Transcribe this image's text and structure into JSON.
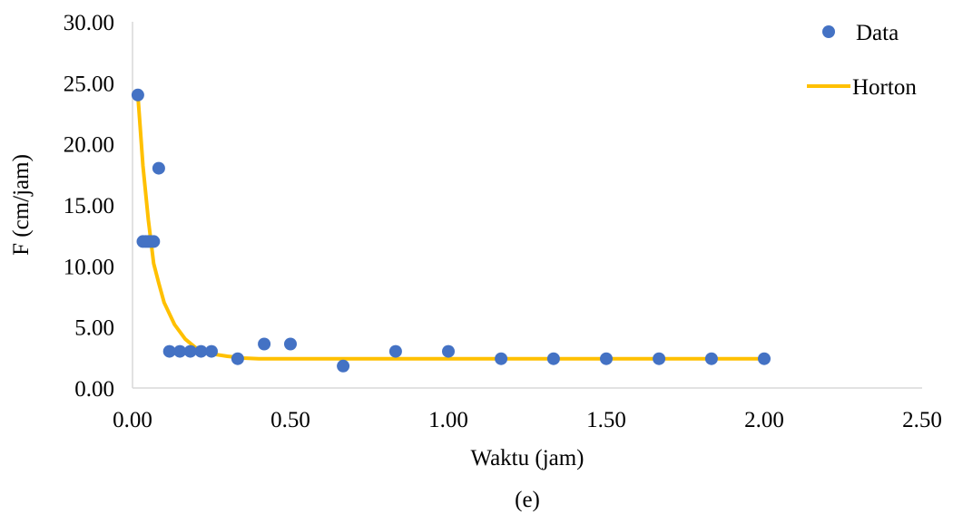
{
  "chart_data": {
    "type": "scatter",
    "xlabel": "Waktu (jam)",
    "ylabel": "F (cm/jam)",
    "caption": "(e)",
    "xlim": [
      0,
      2.5
    ],
    "ylim": [
      0,
      30
    ],
    "xticks": [
      "0.00",
      "0.50",
      "1.00",
      "1.50",
      "2.00",
      "2.50"
    ],
    "yticks": [
      "0.00",
      "5.00",
      "10.00",
      "15.00",
      "20.00",
      "25.00",
      "30.00"
    ],
    "grid": false,
    "legend_position": "top-right",
    "series": [
      {
        "name": "Data",
        "kind": "scatter",
        "color": "#4472C4",
        "points": [
          [
            0.017,
            24.0
          ],
          [
            0.033,
            12.0
          ],
          [
            0.042,
            12.0
          ],
          [
            0.05,
            12.0
          ],
          [
            0.058,
            12.0
          ],
          [
            0.067,
            12.0
          ],
          [
            0.083,
            18.0
          ],
          [
            0.117,
            3.0
          ],
          [
            0.15,
            3.0
          ],
          [
            0.183,
            3.0
          ],
          [
            0.217,
            3.0
          ],
          [
            0.25,
            3.0
          ],
          [
            0.333,
            2.4
          ],
          [
            0.417,
            3.6
          ],
          [
            0.5,
            3.6
          ],
          [
            0.667,
            1.8
          ],
          [
            0.833,
            3.0
          ],
          [
            1.0,
            3.0
          ],
          [
            1.167,
            2.4
          ],
          [
            1.333,
            2.4
          ],
          [
            1.5,
            2.4
          ],
          [
            1.667,
            2.4
          ],
          [
            1.833,
            2.4
          ],
          [
            2.0,
            2.4
          ]
        ]
      },
      {
        "name": "Horton",
        "kind": "line",
        "color": "#FFC000",
        "points": [
          [
            0.017,
            24.0
          ],
          [
            0.033,
            18.2
          ],
          [
            0.05,
            13.8
          ],
          [
            0.067,
            10.2
          ],
          [
            0.083,
            8.6
          ],
          [
            0.1,
            7.0
          ],
          [
            0.133,
            5.2
          ],
          [
            0.167,
            4.0
          ],
          [
            0.2,
            3.3
          ],
          [
            0.25,
            2.8
          ],
          [
            0.3,
            2.6
          ],
          [
            0.35,
            2.45
          ],
          [
            0.4,
            2.4
          ],
          [
            0.5,
            2.4
          ],
          [
            1.0,
            2.4
          ],
          [
            1.5,
            2.4
          ],
          [
            2.0,
            2.4
          ]
        ]
      }
    ]
  }
}
